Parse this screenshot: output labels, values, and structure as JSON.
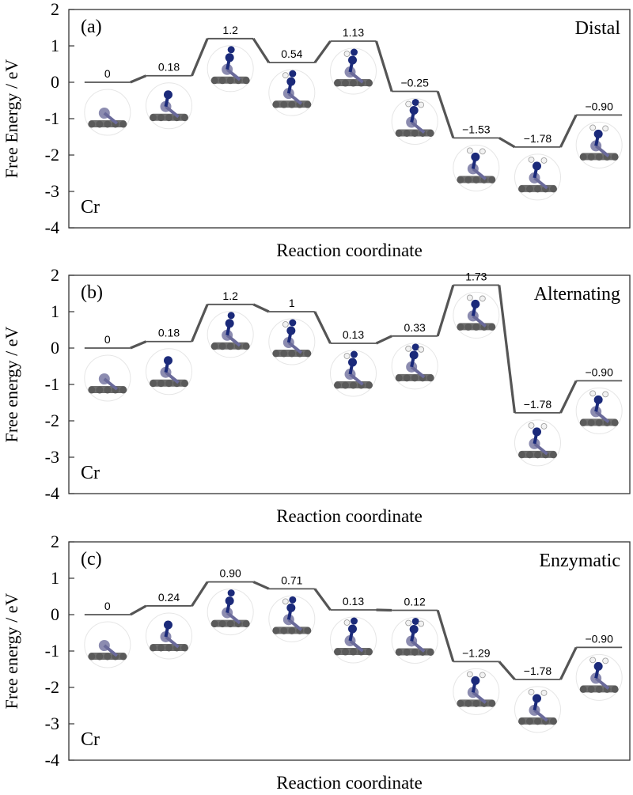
{
  "chart_data": [
    {
      "type": "line",
      "panel_label": "(a)",
      "mechanism": "Distal",
      "metal": "Cr",
      "ylabel": "Free Energy / eV",
      "xlabel": "Reaction coordinate",
      "ylim": [
        -4,
        2
      ],
      "yticks": [
        "2",
        "1",
        "0",
        "-1",
        "-2",
        "-3",
        "-4"
      ],
      "levels": [
        0,
        0.18,
        1.2,
        0.54,
        1.13,
        -0.25,
        -1.53,
        -1.78,
        -0.9
      ],
      "labels": [
        "0",
        "0.18",
        "1.2",
        "0.54",
        "1.13",
        "−0.25",
        "−1.53",
        "−1.78",
        "−0.90"
      ]
    },
    {
      "type": "line",
      "panel_label": "(b)",
      "mechanism": "Alternating",
      "metal": "Cr",
      "ylabel": "Free energy / eV",
      "xlabel": "Reaction coordinate",
      "ylim": [
        -4,
        2
      ],
      "yticks": [
        "2",
        "1",
        "0",
        "-1",
        "-2",
        "-3",
        "-4"
      ],
      "levels": [
        0,
        0.18,
        1.2,
        1,
        0.13,
        0.33,
        1.73,
        -1.78,
        -0.9
      ],
      "labels": [
        "0",
        "0.18",
        "1.2",
        "1",
        "0.13",
        "0.33",
        "1.73",
        "−1.78",
        "−0.90"
      ]
    },
    {
      "type": "line",
      "panel_label": "(c)",
      "mechanism": "Enzymatic",
      "metal": "Cr",
      "ylabel": "Free energy / eV",
      "xlabel": "Reaction coordinate",
      "ylim": [
        -4,
        2
      ],
      "yticks": [
        "2",
        "1",
        "0",
        "-1",
        "-2",
        "-3",
        "-4"
      ],
      "levels": [
        0,
        0.24,
        0.9,
        0.71,
        0.13,
        0.12,
        -1.29,
        -1.78,
        -0.9
      ],
      "labels": [
        "0",
        "0.24",
        "0.90",
        "0.71",
        "0.13",
        "0.12",
        "−1.29",
        "−1.78",
        "−0.90"
      ]
    }
  ]
}
